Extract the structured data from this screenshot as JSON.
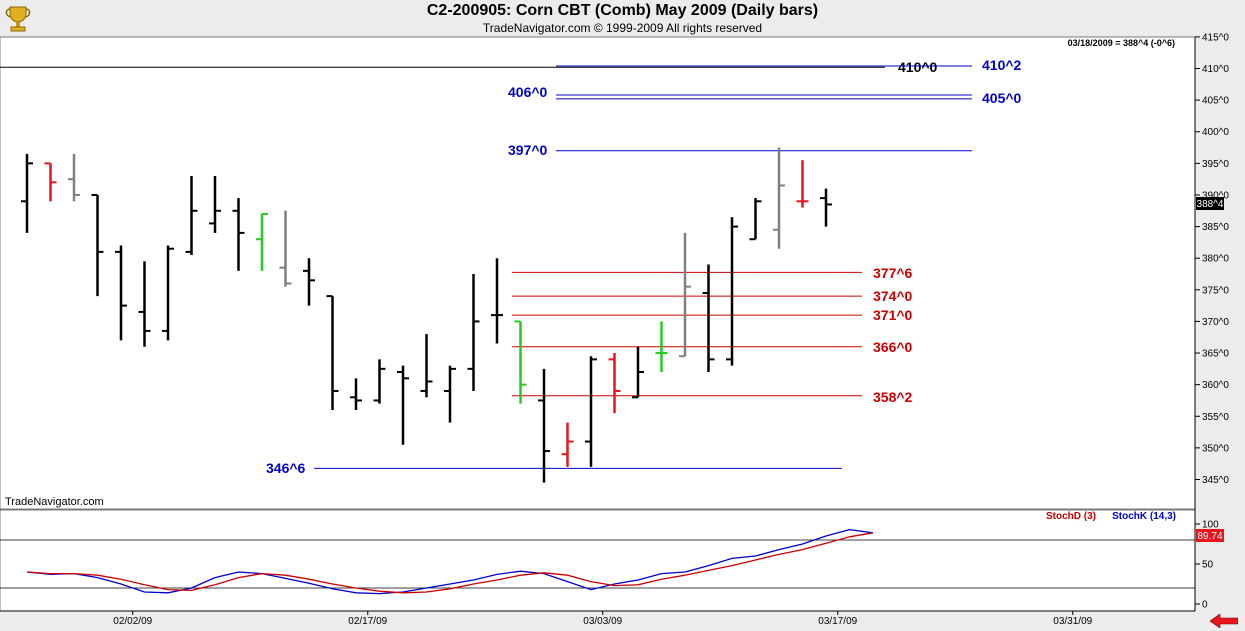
{
  "header": {
    "title": "C2-200905:  Corn CBT (Comb) May 2009  (Daily bars)",
    "subtitle": "TradeNavigator.com © 1999-2009 All rights reserved"
  },
  "info_line": "03/18/2009 = 388^4 (-0^6)",
  "watermark": "TradeNavigator.com",
  "last_price_label": "388^4",
  "stoch_last_label": "89.74",
  "indicator_legend": {
    "stochd": "StochD (3)",
    "stochk": "StochK (14,3)"
  },
  "colors": {
    "up": "#000000",
    "gray": "#808080",
    "red": "#e8141e",
    "green": "#22cc22",
    "blue_line": "#0000c8",
    "red_line": "#cc0000",
    "stochK": "#0000cc",
    "stochD": "#cc0000"
  },
  "icons": [
    "trophy-logo-icon",
    "back-arrow-icon"
  ],
  "chart_data": [
    {
      "type": "ohlc",
      "ylim": [
        343,
        416
      ],
      "y_ticks": [
        "345^0",
        "350^0",
        "355^0",
        "360^0",
        "365^0",
        "370^0",
        "375^0",
        "380^0",
        "385^0",
        "390^0",
        "395^0",
        "400^0",
        "405^0",
        "410^0",
        "415^0"
      ],
      "y_tick_values": [
        345,
        350,
        355,
        360,
        365,
        370,
        375,
        380,
        385,
        390,
        395,
        400,
        405,
        410,
        415
      ],
      "x_ticks": [
        "02/02/09",
        "02/17/09",
        "03/03/09",
        "03/17/09",
        "03/31/09"
      ],
      "x_tick_index": [
        4.5,
        14.5,
        24.5,
        34.5,
        44.5
      ],
      "bars": [
        {
          "o": 389,
          "h": 396.5,
          "l": 384,
          "c": 395,
          "color": "up"
        },
        {
          "o": 395,
          "h": 395,
          "l": 389,
          "c": 392,
          "color": "red"
        },
        {
          "o": 392.5,
          "h": 396.5,
          "l": 389,
          "c": 390,
          "color": "gray"
        },
        {
          "o": 390,
          "h": 390,
          "l": 374,
          "c": 381,
          "color": "up"
        },
        {
          "o": 381,
          "h": 382,
          "l": 367,
          "c": 372.5,
          "color": "up"
        },
        {
          "o": 371.5,
          "h": 379.5,
          "l": 366,
          "c": 368.5,
          "color": "up"
        },
        {
          "o": 368.5,
          "h": 382,
          "l": 367,
          "c": 381.5,
          "color": "up"
        },
        {
          "o": 381,
          "h": 393,
          "l": 380.5,
          "c": 387.5,
          "color": "up"
        },
        {
          "o": 385.5,
          "h": 393,
          "l": 384,
          "c": 387.5,
          "color": "up"
        },
        {
          "o": 387.5,
          "h": 389.5,
          "l": 378,
          "c": 384,
          "color": "up"
        },
        {
          "o": 383,
          "h": 387,
          "l": 378,
          "c": 387,
          "color": "green"
        },
        {
          "o": 378.5,
          "h": 387.5,
          "l": 375.5,
          "c": 376,
          "color": "gray"
        },
        {
          "o": 378,
          "h": 380,
          "l": 372.5,
          "c": 376.5,
          "color": "up"
        },
        {
          "o": 374,
          "h": 374,
          "l": 356,
          "c": 359,
          "color": "up"
        },
        {
          "o": 358,
          "h": 361,
          "l": 356,
          "c": 357.5,
          "color": "up"
        },
        {
          "o": 357.5,
          "h": 364,
          "l": 357,
          "c": 362.5,
          "color": "up"
        },
        {
          "o": 362,
          "h": 363,
          "l": 350.5,
          "c": 361,
          "color": "up"
        },
        {
          "o": 359,
          "h": 368,
          "l": 358,
          "c": 360.5,
          "color": "up"
        },
        {
          "o": 359,
          "h": 363,
          "l": 354,
          "c": 362.5,
          "color": "up"
        },
        {
          "o": 362.5,
          "h": 377.5,
          "l": 359,
          "c": 370,
          "color": "up"
        },
        {
          "o": 371,
          "h": 380,
          "l": 366.5,
          "c": 371,
          "color": "up"
        },
        {
          "o": 370,
          "h": 370,
          "l": 357,
          "c": 360,
          "color": "green"
        },
        {
          "o": 357.5,
          "h": 362.5,
          "l": 344.5,
          "c": 349.5,
          "color": "up"
        },
        {
          "o": 349,
          "h": 354,
          "l": 347,
          "c": 351,
          "color": "red"
        },
        {
          "o": 351,
          "h": 364.5,
          "l": 347,
          "c": 364,
          "color": "up"
        },
        {
          "o": 364,
          "h": 365,
          "l": 355.5,
          "c": 359,
          "color": "red"
        },
        {
          "o": 358,
          "h": 366,
          "l": 358,
          "c": 362,
          "color": "up"
        },
        {
          "o": 365,
          "h": 370,
          "l": 362,
          "c": 365,
          "color": "green"
        },
        {
          "o": 364.5,
          "h": 384,
          "l": 364.5,
          "c": 375.5,
          "color": "gray"
        },
        {
          "o": 374.5,
          "h": 379,
          "l": 362,
          "c": 364,
          "color": "up"
        },
        {
          "o": 364,
          "h": 386.5,
          "l": 363,
          "c": 385,
          "color": "up"
        },
        {
          "o": 383,
          "h": 389.5,
          "l": 383,
          "c": 389,
          "color": "up"
        },
        {
          "o": 384.5,
          "h": 397.5,
          "l": 381.5,
          "c": 391.5,
          "color": "gray"
        },
        {
          "o": 389,
          "h": 395.5,
          "l": 388,
          "c": 389,
          "color": "red"
        },
        {
          "o": 389.5,
          "h": 391,
          "l": 385,
          "c": 388.5,
          "color": "up"
        }
      ],
      "levels": [
        {
          "label": "410^0",
          "value": 410.2,
          "color": "black"
        },
        {
          "label": "410^2",
          "value": 410.4,
          "color": "blue"
        },
        {
          "label": "406^0",
          "value": 405.8,
          "color": "blue"
        },
        {
          "label": "405^0",
          "value": 405.2,
          "color": "blue"
        },
        {
          "label": "397^0",
          "value": 397,
          "color": "blue"
        },
        {
          "label": "377^6",
          "value": 377.75,
          "color": "red"
        },
        {
          "label": "374^0",
          "value": 374,
          "color": "red"
        },
        {
          "label": "371^0",
          "value": 371,
          "color": "red"
        },
        {
          "label": "366^0",
          "value": 366,
          "color": "red"
        },
        {
          "label": "358^2",
          "value": 358.25,
          "color": "red"
        },
        {
          "label": "346^6",
          "value": 346.75,
          "color": "blue"
        }
      ]
    },
    {
      "type": "line",
      "ylim": [
        -5,
        105
      ],
      "y_ticks": [
        "0",
        "50",
        "100"
      ],
      "y_tick_values": [
        0,
        50,
        100
      ],
      "ref_lines": [
        20,
        80
      ],
      "series": [
        {
          "name": "StochK (14,3)",
          "color": "stochK",
          "values": [
            40,
            37,
            38,
            33,
            25,
            15,
            14,
            20,
            33,
            40,
            38,
            32,
            26,
            19,
            14,
            13,
            15,
            20,
            25,
            30,
            37,
            41,
            38,
            28,
            18,
            25,
            30,
            38,
            40,
            48,
            57,
            60,
            68,
            75,
            85,
            93,
            89
          ]
        },
        {
          "name": "StochD (3)",
          "color": "stochD",
          "values": [
            40,
            38,
            38,
            36,
            31,
            24,
            18,
            17,
            24,
            33,
            38,
            36,
            31,
            25,
            20,
            16,
            14,
            15,
            19,
            25,
            30,
            36,
            39,
            36,
            28,
            23,
            24,
            31,
            36,
            42,
            48,
            55,
            62,
            68,
            76,
            84,
            89
          ]
        }
      ]
    }
  ]
}
